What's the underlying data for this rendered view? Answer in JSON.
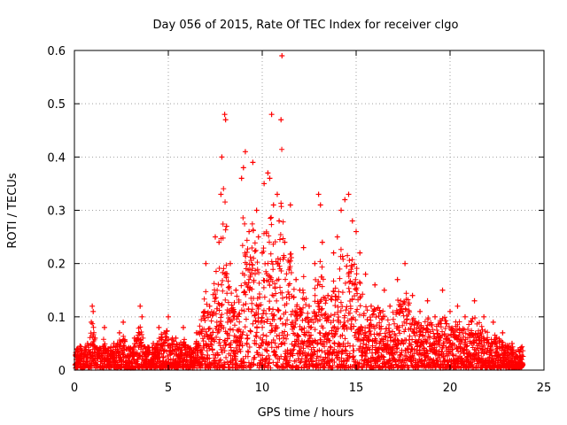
{
  "chart_data": {
    "type": "scatter",
    "title": "Day 056 of 2015, Rate Of TEC Index for receiver clgo",
    "xlabel": "GPS time / hours",
    "ylabel": "ROTI / TECUs",
    "xlim": [
      0,
      25
    ],
    "ylim": [
      0,
      0.6
    ],
    "x_ticks": [
      0,
      5,
      10,
      15,
      20,
      25
    ],
    "x_tick_labels": [
      "0",
      "5",
      "10",
      "15",
      "20",
      "25"
    ],
    "y_ticks": [
      0,
      0.1,
      0.2,
      0.3,
      0.4,
      0.5,
      0.6
    ],
    "y_tick_labels": [
      "0",
      "0.1",
      "0.2",
      "0.3",
      "0.4",
      "0.5",
      "0.6"
    ],
    "grid": true,
    "marker": "+",
    "color": "#ff0000",
    "series": [
      {
        "name": "ROTI",
        "points": [
          [
            0.1,
            0.02
          ],
          [
            0.3,
            0.045
          ],
          [
            0.5,
            0.03
          ],
          [
            0.7,
            0.05
          ],
          [
            0.9,
            0.09
          ],
          [
            0.95,
            0.12
          ],
          [
            1.0,
            0.11
          ],
          [
            1.1,
            0.06
          ],
          [
            1.4,
            0.04
          ],
          [
            1.6,
            0.08
          ],
          [
            1.8,
            0.03
          ],
          [
            2.1,
            0.05
          ],
          [
            2.4,
            0.07
          ],
          [
            2.6,
            0.09
          ],
          [
            2.9,
            0.04
          ],
          [
            3.2,
            0.06
          ],
          [
            3.5,
            0.12
          ],
          [
            3.6,
            0.1
          ],
          [
            3.8,
            0.04
          ],
          [
            4.2,
            0.05
          ],
          [
            4.5,
            0.08
          ],
          [
            5.0,
            0.1
          ],
          [
            5.4,
            0.06
          ],
          [
            5.8,
            0.08
          ],
          [
            6.1,
            0.04
          ],
          [
            6.5,
            0.07
          ],
          [
            7.0,
            0.2
          ],
          [
            7.2,
            0.12
          ],
          [
            7.5,
            0.25
          ],
          [
            7.7,
            0.24
          ],
          [
            7.8,
            0.33
          ],
          [
            7.85,
            0.4
          ],
          [
            8.0,
            0.48
          ],
          [
            8.05,
            0.47
          ],
          [
            8.1,
            0.27
          ],
          [
            8.3,
            0.2
          ],
          [
            8.6,
            0.15
          ],
          [
            8.9,
            0.36
          ],
          [
            9.0,
            0.38
          ],
          [
            9.1,
            0.41
          ],
          [
            9.3,
            0.26
          ],
          [
            9.5,
            0.39
          ],
          [
            9.7,
            0.3
          ],
          [
            9.8,
            0.25
          ],
          [
            10.0,
            0.22
          ],
          [
            10.1,
            0.35
          ],
          [
            10.3,
            0.37
          ],
          [
            10.4,
            0.36
          ],
          [
            10.5,
            0.48
          ],
          [
            10.6,
            0.31
          ],
          [
            10.8,
            0.33
          ],
          [
            10.9,
            0.28
          ],
          [
            11.0,
            0.47
          ],
          [
            11.05,
            0.59
          ],
          [
            11.2,
            0.24
          ],
          [
            11.5,
            0.31
          ],
          [
            11.8,
            0.17
          ],
          [
            12.0,
            0.15
          ],
          [
            12.2,
            0.23
          ],
          [
            12.5,
            0.12
          ],
          [
            12.8,
            0.2
          ],
          [
            13.0,
            0.33
          ],
          [
            13.1,
            0.31
          ],
          [
            13.2,
            0.24
          ],
          [
            13.5,
            0.14
          ],
          [
            13.8,
            0.22
          ],
          [
            14.0,
            0.25
          ],
          [
            14.2,
            0.3
          ],
          [
            14.4,
            0.32
          ],
          [
            14.6,
            0.33
          ],
          [
            14.8,
            0.28
          ],
          [
            15.0,
            0.26
          ],
          [
            15.2,
            0.22
          ],
          [
            15.5,
            0.18
          ],
          [
            15.8,
            0.12
          ],
          [
            16.0,
            0.16
          ],
          [
            16.5,
            0.15
          ],
          [
            16.8,
            0.12
          ],
          [
            17.2,
            0.17
          ],
          [
            17.6,
            0.2
          ],
          [
            18.0,
            0.14
          ],
          [
            18.4,
            0.11
          ],
          [
            18.8,
            0.13
          ],
          [
            19.2,
            0.1
          ],
          [
            19.6,
            0.15
          ],
          [
            20.0,
            0.11
          ],
          [
            20.4,
            0.12
          ],
          [
            20.8,
            0.1
          ],
          [
            21.3,
            0.13
          ],
          [
            21.8,
            0.1
          ],
          [
            22.3,
            0.09
          ],
          [
            22.8,
            0.07
          ],
          [
            23.3,
            0.05
          ],
          [
            23.8,
            0.02
          ]
        ]
      }
    ]
  }
}
